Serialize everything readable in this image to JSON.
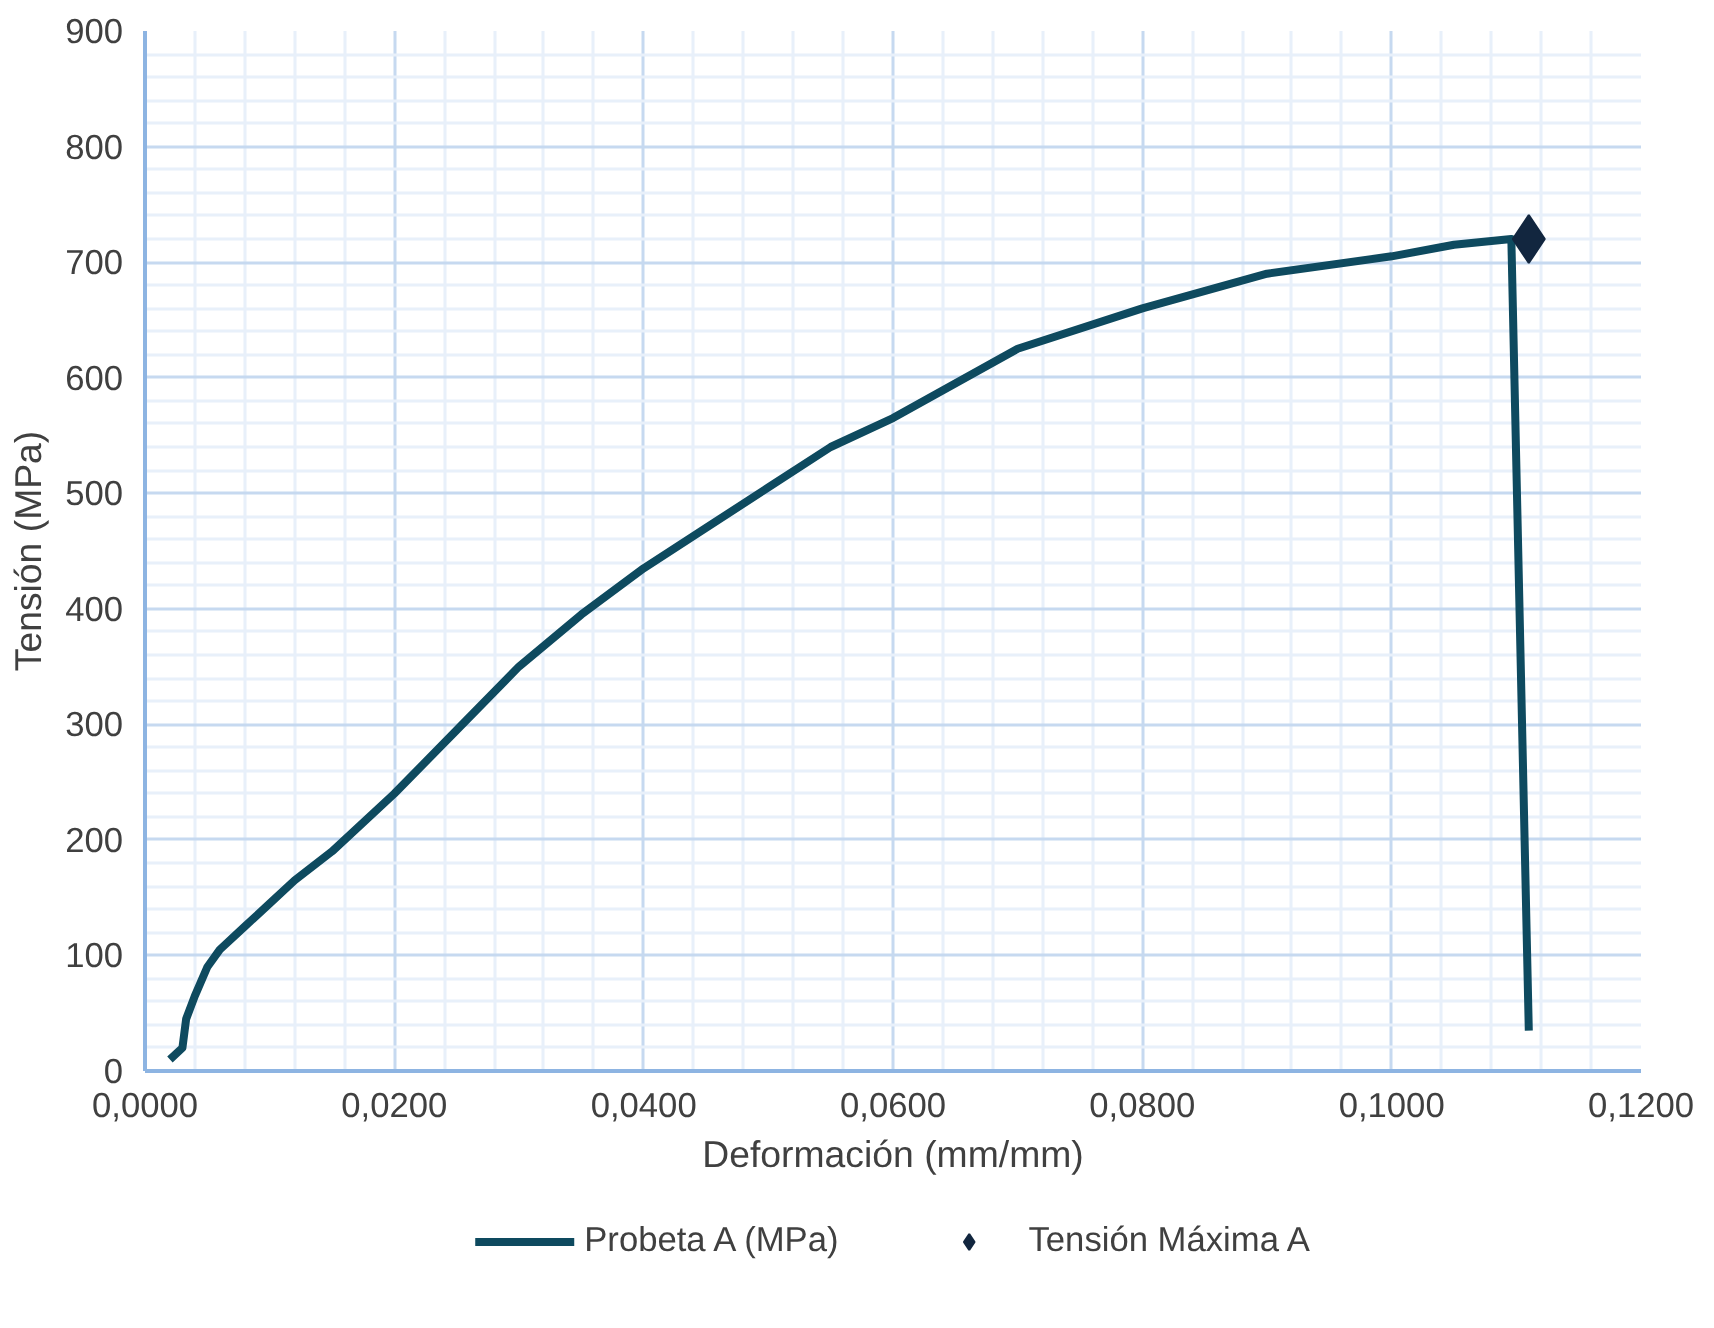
{
  "chart_data": {
    "type": "line",
    "xlabel": "Deformación (mm/mm)",
    "ylabel": "Tensión (MPa)",
    "xlim": [
      0,
      0.12
    ],
    "ylim": [
      0,
      900
    ],
    "xticks": [
      {
        "value": 0,
        "label": "0,0000"
      },
      {
        "value": 0.02,
        "label": "0,0200"
      },
      {
        "value": 0.04,
        "label": "0,0400"
      },
      {
        "value": 0.06,
        "label": "0,0600"
      },
      {
        "value": 0.08,
        "label": "0,0800"
      },
      {
        "value": 0.1,
        "label": "0,1000"
      },
      {
        "value": 0.12,
        "label": "0,1200"
      }
    ],
    "yticks": [
      0,
      100,
      200,
      300,
      400,
      500,
      600,
      700,
      800,
      900
    ],
    "grid": true,
    "legend": "bottom",
    "series": [
      {
        "name": "Probeta A (MPa)",
        "color": "#0e4a5f",
        "marker": "none",
        "x": [
          0.002,
          0.003,
          0.0033,
          0.004,
          0.005,
          0.006,
          0.008,
          0.01,
          0.012,
          0.015,
          0.02,
          0.025,
          0.03,
          0.035,
          0.04,
          0.045,
          0.05,
          0.055,
          0.06,
          0.07,
          0.08,
          0.09,
          0.1,
          0.105,
          0.1096,
          0.111
        ],
        "values": [
          10,
          20,
          45,
          65,
          90,
          105,
          125,
          145,
          165,
          190,
          240,
          295,
          350,
          395,
          435,
          470,
          505,
          540,
          565,
          625,
          660,
          690,
          705,
          715,
          720,
          35
        ]
      },
      {
        "name": "Tensión Máxima A",
        "color": "#12263f",
        "type": "scatter",
        "marker": "diamond",
        "x": [
          0.111
        ],
        "values": [
          720
        ]
      }
    ]
  }
}
